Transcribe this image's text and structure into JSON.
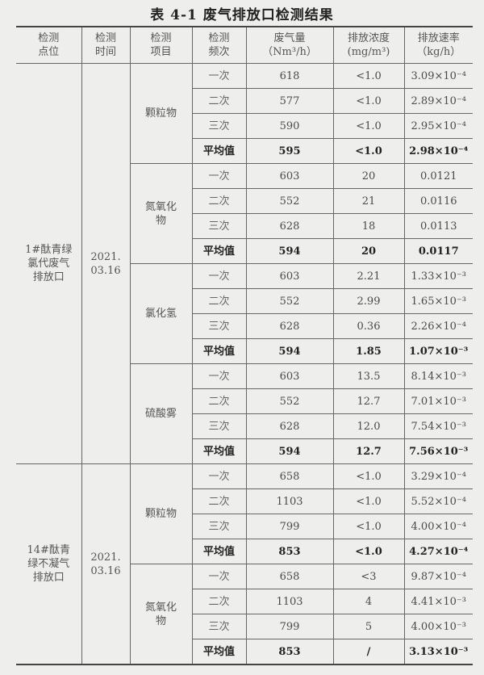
{
  "title": "表 4-1    废气排放口检测结果",
  "headers": [
    "检测\n点位",
    "检测\n时间",
    "检测\n项目",
    "检测\n频次",
    "废气量\n（Nm³/h）",
    "排放浓度\n(mg/m³)",
    "排放速率\n（kg/h）"
  ],
  "sites": [
    {
      "name": "1#酞青绿\n氯代废气\n排放口",
      "date": "2021.\n03.16",
      "items": [
        {
          "name": "颗粒物",
          "rows": [
            {
              "freq": "一次",
              "flow": "618",
              "conc": "<1.0",
              "rate": "3.09×10⁻⁴"
            },
            {
              "freq": "二次",
              "flow": "577",
              "conc": "<1.0",
              "rate": "2.89×10⁻⁴"
            },
            {
              "freq": "三次",
              "flow": "590",
              "conc": "<1.0",
              "rate": "2.95×10⁻⁴"
            },
            {
              "freq": "平均值",
              "flow": "595",
              "conc": "<1.0",
              "rate": "2.98×10⁻⁴",
              "avg": true
            }
          ]
        },
        {
          "name": "氮氧化\n物",
          "rows": [
            {
              "freq": "一次",
              "flow": "603",
              "conc": "20",
              "rate": "0.0121"
            },
            {
              "freq": "二次",
              "flow": "552",
              "conc": "21",
              "rate": "0.0116"
            },
            {
              "freq": "三次",
              "flow": "628",
              "conc": "18",
              "rate": "0.0113"
            },
            {
              "freq": "平均值",
              "flow": "594",
              "conc": "20",
              "rate": "0.0117",
              "avg": true
            }
          ]
        },
        {
          "name": "氯化氢",
          "rows": [
            {
              "freq": "一次",
              "flow": "603",
              "conc": "2.21",
              "rate": "1.33×10⁻³"
            },
            {
              "freq": "二次",
              "flow": "552",
              "conc": "2.99",
              "rate": "1.65×10⁻³"
            },
            {
              "freq": "三次",
              "flow": "628",
              "conc": "0.36",
              "rate": "2.26×10⁻⁴"
            },
            {
              "freq": "平均值",
              "flow": "594",
              "conc": "1.85",
              "rate": "1.07×10⁻³",
              "avg": true
            }
          ]
        },
        {
          "name": "硫酸雾",
          "rows": [
            {
              "freq": "一次",
              "flow": "603",
              "conc": "13.5",
              "rate": "8.14×10⁻³"
            },
            {
              "freq": "二次",
              "flow": "552",
              "conc": "12.7",
              "rate": "7.01×10⁻³"
            },
            {
              "freq": "三次",
              "flow": "628",
              "conc": "12.0",
              "rate": "7.54×10⁻³"
            },
            {
              "freq": "平均值",
              "flow": "594",
              "conc": "12.7",
              "rate": "7.56×10⁻³",
              "avg": true
            }
          ]
        }
      ]
    },
    {
      "name": "14#酞青\n绿不凝气\n排放口",
      "date": "2021.\n03.16",
      "items": [
        {
          "name": "颗粒物",
          "rows": [
            {
              "freq": "一次",
              "flow": "658",
              "conc": "<1.0",
              "rate": "3.29×10⁻⁴"
            },
            {
              "freq": "二次",
              "flow": "1103",
              "conc": "<1.0",
              "rate": "5.52×10⁻⁴"
            },
            {
              "freq": "三次",
              "flow": "799",
              "conc": "<1.0",
              "rate": "4.00×10⁻⁴"
            },
            {
              "freq": "平均值",
              "flow": "853",
              "conc": "<1.0",
              "rate": "4.27×10⁻⁴",
              "avg": true
            }
          ]
        },
        {
          "name": "氮氧化\n物",
          "rows": [
            {
              "freq": "一次",
              "flow": "658",
              "conc": "<3",
              "rate": "9.87×10⁻⁴"
            },
            {
              "freq": "二次",
              "flow": "1103",
              "conc": "4",
              "rate": "4.41×10⁻³"
            },
            {
              "freq": "三次",
              "flow": "799",
              "conc": "5",
              "rate": "4.00×10⁻³"
            },
            {
              "freq": "平均值",
              "flow": "853",
              "conc": "/",
              "rate": "3.13×10⁻³",
              "avg": true
            }
          ]
        }
      ]
    }
  ]
}
